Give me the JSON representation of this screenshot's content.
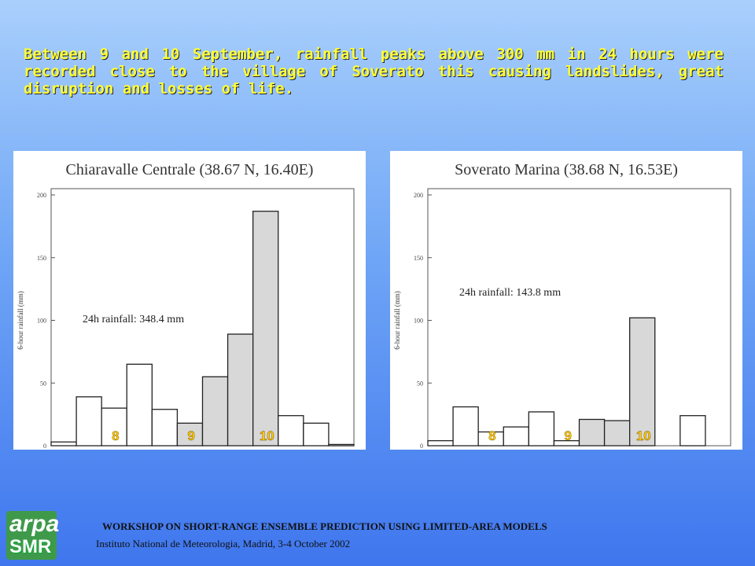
{
  "slide": {
    "text": "Between 9 and 10 September, rainfall peaks above 300 mm in 24 hours were recorded close to the village of Soverato this causing landslides, great disruption and losses of life.",
    "logo": [
      "arpa",
      "SMR"
    ],
    "footer": [
      "WORKSHOP ON SHORT-RANGE ENSEMBLE PREDICTION USING LIMITED-AREA MODELS",
      "Instituto National de Meteorologia, Madrid, 3-4 October 2002"
    ]
  },
  "chart_data": [
    {
      "type": "bar",
      "title": "Chiaravalle Centrale (38.67 N, 16.40E)",
      "y_label": "6-hour rainfall (mm)",
      "annotation": "24h rainfall: 348.4 mm",
      "categories": [
        null,
        null,
        "8",
        null,
        null,
        "9",
        null,
        null,
        "10",
        null,
        null,
        null
      ],
      "values": [
        3,
        39,
        30,
        65,
        29,
        18,
        55,
        89,
        187,
        24,
        18,
        1
      ],
      "bar_colors": [
        "#ffffff",
        "#ffffff",
        "#ffffff",
        "#ffffff",
        "#ffffff",
        "#d8d8d8",
        "#d8d8d8",
        "#d8d8d8",
        "#d8d8d8",
        "#ffffff",
        "#ffffff",
        "#ffffff"
      ],
      "ylim": [
        0,
        200
      ],
      "yticks": [
        0,
        50,
        100,
        150,
        200
      ]
    },
    {
      "type": "bar",
      "title": "Soverato Marina (38.68 N, 16.53E)",
      "y_label": "6-hour rainfall (mm)",
      "annotation": "24h rainfall: 143.8 mm",
      "categories": [
        null,
        null,
        "8",
        null,
        null,
        "9",
        null,
        null,
        "10",
        null,
        null,
        null
      ],
      "values": [
        4,
        31,
        11,
        15,
        27,
        4,
        21,
        20,
        102,
        0,
        24,
        0
      ],
      "bar_colors": [
        "#ffffff",
        "#ffffff",
        "#ffffff",
        "#ffffff",
        "#ffffff",
        "#ffffff",
        "#d8d8d8",
        "#d8d8d8",
        "#d8d8d8",
        "#ffffff",
        "#ffffff",
        "#ffffff"
      ],
      "ylim": [
        0,
        200
      ],
      "yticks": [
        0,
        50,
        100,
        150,
        200
      ]
    }
  ]
}
